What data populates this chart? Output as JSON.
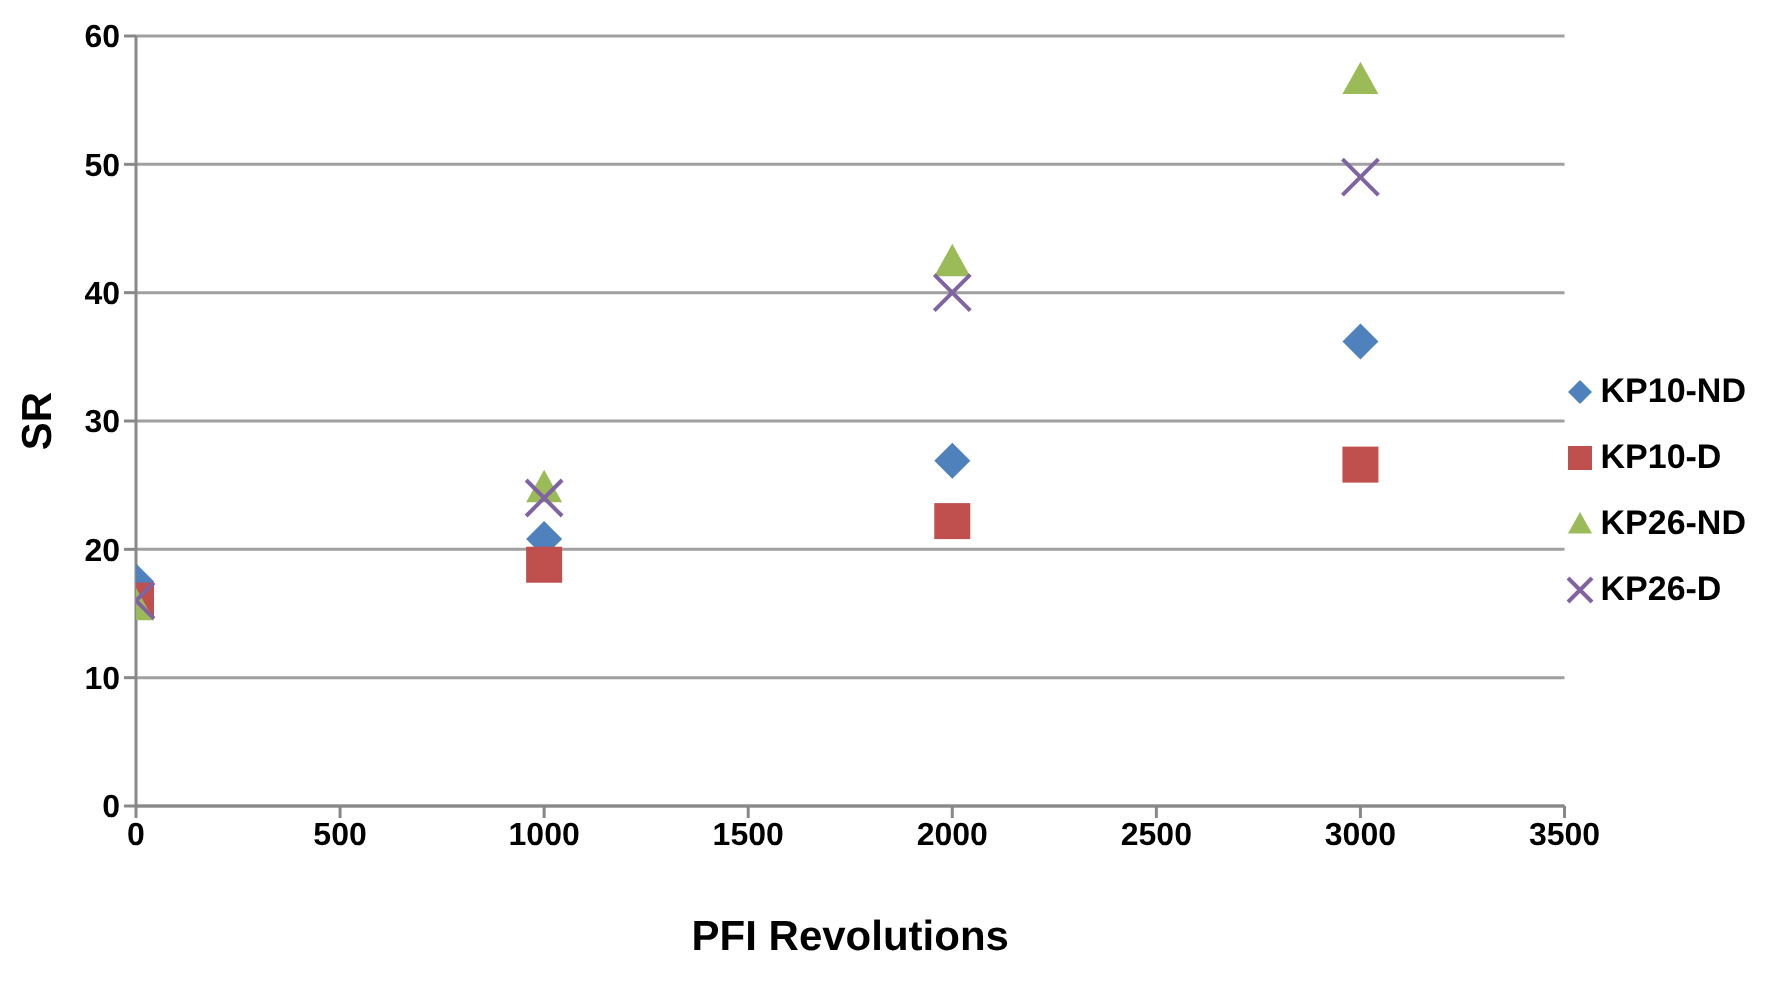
{
  "chart_data": {
    "type": "scatter",
    "xlabel": "PFI Revolutions",
    "ylabel": "SR",
    "x": [
      0,
      1000,
      2000,
      3000
    ],
    "series": [
      {
        "name": "KP10-ND",
        "color": "#4f81bd",
        "marker": "diamond",
        "values": [
          17.5,
          20.8,
          26.9,
          36.2
        ]
      },
      {
        "name": "KP10-D",
        "color": "#c0504d",
        "marker": "square",
        "values": [
          16,
          18.8,
          22.2,
          26.6
        ]
      },
      {
        "name": "KP26-ND",
        "color": "#9bbb59",
        "marker": "triangle",
        "values": [
          15.6,
          24.8,
          42.4,
          56.6
        ]
      },
      {
        "name": "KP26-D",
        "color": "#8064a2",
        "marker": "cross",
        "values": [
          16,
          24,
          40,
          49
        ]
      }
    ],
    "xlim": [
      0,
      3500
    ],
    "xticks": [
      0,
      500,
      1000,
      1500,
      2000,
      2500,
      3000,
      3500
    ],
    "ylim": [
      0,
      60
    ],
    "yticks": [
      0,
      10,
      20,
      30,
      40,
      50,
      60
    ],
    "grid": "y",
    "legend": "right"
  }
}
